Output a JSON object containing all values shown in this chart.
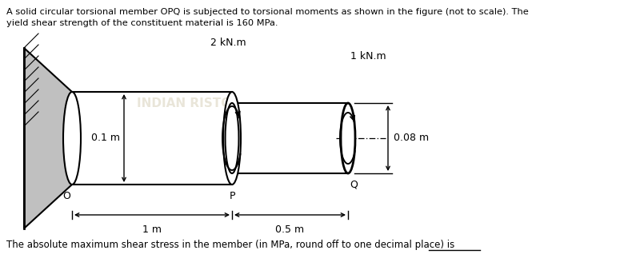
{
  "title_line1": "A solid circular torsional member OPQ is subjected to torsional moments as shown in the figure (not to scale). The",
  "title_line2": "yield shear strength of the constituent material is 160 MPa.",
  "footer_text": "The absolute maximum shear stress in the member (in MPa, round off to one decimal place) is _______",
  "bg_color": "#ffffff",
  "fig_width": 8.0,
  "fig_height": 3.38,
  "dpi": 100,
  "label_0p1": "0.1 m",
  "label_0p08": "0.08 m",
  "label_1m": "1 m",
  "label_0p5m": "0.5 m",
  "label_2kNm": "2 kN.m",
  "label_1kNm": "1 kN.m",
  "label_O": "O",
  "label_P": "P",
  "label_Q": "Q",
  "watermark_color": "#c8c0a0",
  "wall_fill": "#c0c0c0",
  "wall_edge": "#000000"
}
